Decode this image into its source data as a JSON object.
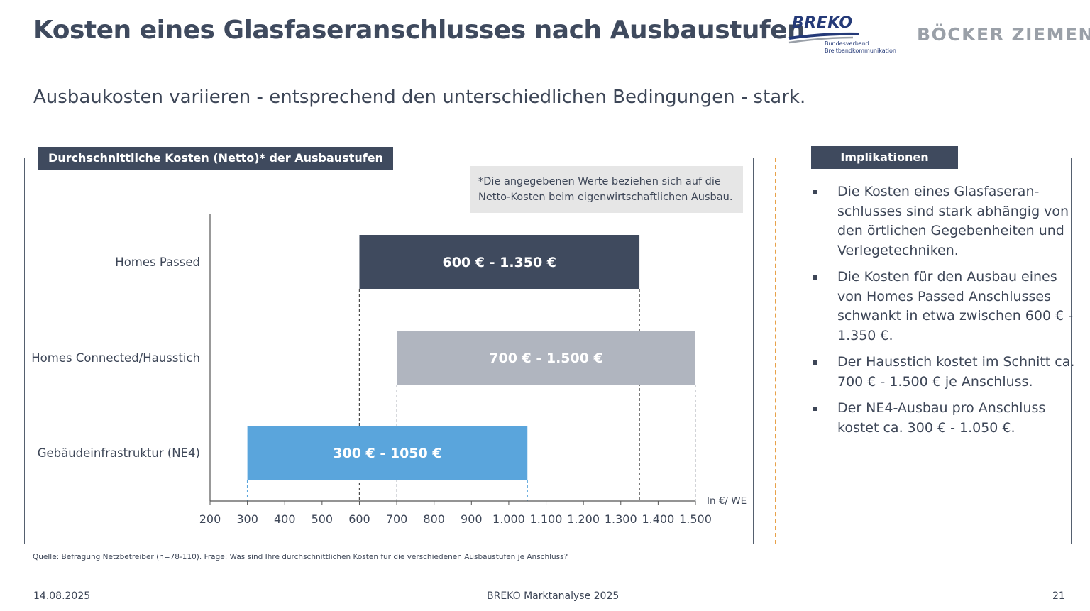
{
  "slide": {
    "title": "Kosten eines Glasfaseranschlusses nach Ausbaustufen",
    "subtitle": "Ausbaukosten variieren - entsprechend den unterschiedlichen Bedingungen - stark."
  },
  "logos": {
    "breko": "BREKO",
    "breko_sub_1": "Bundesverband",
    "breko_sub_2": "Breitbandkommunikation",
    "boecker": "BÖCKER ZIEMEN"
  },
  "left_panel": {
    "header": "Durchschnittliche Kosten (Netto)* der Ausbaustufen",
    "note_line_1": "*Die angegebenen Werte beziehen sich auf die",
    "note_line_2": "Netto-Kosten beim eigenwirtschaftlichen Ausbau."
  },
  "right_panel": {
    "header": "Implikationen",
    "bullets": [
      {
        "lines": [
          "Die Kosten eines Glasfaseran-",
          "schlusses sind stark abhängig von",
          "den örtlichen Gegebenheiten und",
          "Verlegetechniken."
        ]
      },
      {
        "lines": [
          "Die Kosten für den Ausbau eines",
          "von Homes Passed Anschlusses",
          "schwankt in etwa zwischen 600 € -",
          "1.350 €."
        ]
      },
      {
        "lines": [
          "Der Hausstich kostet im Schnitt ca.",
          "700 € - 1.500 € je Anschluss."
        ]
      },
      {
        "lines": [
          "Der NE4-Ausbau pro Anschluss",
          "kostet ca. 300 € - 1.050 €."
        ]
      }
    ]
  },
  "chart_data": {
    "type": "bar",
    "orientation": "horizontal-range",
    "unit_label": "In €/ WE",
    "xlim": [
      200,
      1500
    ],
    "xticks": [
      200,
      300,
      400,
      500,
      600,
      700,
      800,
      900,
      1000,
      1100,
      1200,
      1300,
      1400,
      1500
    ],
    "xtick_labels": [
      "200",
      "300",
      "400",
      "500",
      "600",
      "700",
      "800",
      "900",
      "1.000",
      "1.100",
      "1.200",
      "1.300",
      "1.400",
      "1.500"
    ],
    "categories": [
      "Homes Passed",
      "Homes Connected/Hausstich",
      "Gebäudeinfrastruktur (NE4)"
    ],
    "ranges": [
      {
        "start": 600,
        "end": 1350,
        "label": "600 € - 1.350 €",
        "color": "#3f4a5e"
      },
      {
        "start": 700,
        "end": 1500,
        "label": "700 € - 1.500 €",
        "color": "#b0b5bf"
      },
      {
        "start": 300,
        "end": 1050,
        "label": "300 € - 1050 €",
        "color": "#5aa5dc"
      }
    ],
    "grid": false,
    "guide_lines": "dashed"
  },
  "footer": {
    "source": "Quelle: Befragung Netzbetreiber (n=78-110). Frage: Was sind Ihre durchschnittlichen Kosten für die verschiedenen Ausbaustufen je Anschluss?",
    "date": "14.08.2025",
    "center": "BREKO Marktanalyse 2025",
    "page": "21"
  }
}
